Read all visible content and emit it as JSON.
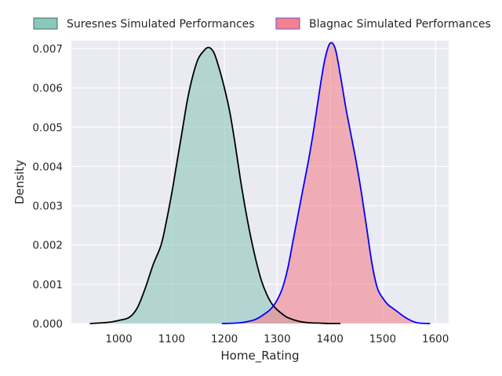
{
  "chart_data": {
    "type": "area",
    "xlabel": "Home_Rating",
    "ylabel": "Density",
    "xlim": [
      910,
      1625
    ],
    "ylim": [
      0,
      0.0072
    ],
    "xticks": [
      "1000",
      "1100",
      "1200",
      "1300",
      "1400",
      "1500",
      "1600"
    ],
    "yticks": [
      "0.000",
      "0.001",
      "0.002",
      "0.003",
      "0.004",
      "0.005",
      "0.006",
      "0.007"
    ],
    "grid": true,
    "legend_position": "top",
    "series": [
      {
        "name": "Suresnes Simulated Performances",
        "fill_color": "#8cc7bb",
        "line_color": "#000000",
        "x": [
          945,
          980,
          1000,
          1020,
          1035,
          1050,
          1065,
          1080,
          1090,
          1100,
          1110,
          1120,
          1130,
          1140,
          1150,
          1160,
          1170,
          1180,
          1190,
          1200,
          1210,
          1220,
          1230,
          1240,
          1250,
          1260,
          1270,
          1280,
          1290,
          1300,
          1310,
          1320,
          1340,
          1360,
          1380,
          1400,
          1420
        ],
        "y": [
          0.0,
          3e-05,
          8e-05,
          0.00016,
          0.0004,
          0.0009,
          0.0015,
          0.002,
          0.0026,
          0.0033,
          0.0041,
          0.0049,
          0.0057,
          0.0063,
          0.00673,
          0.00693,
          0.00703,
          0.0069,
          0.0065,
          0.006,
          0.0054,
          0.0046,
          0.0037,
          0.0029,
          0.0022,
          0.0016,
          0.0011,
          0.00075,
          0.0005,
          0.00035,
          0.00024,
          0.00015,
          6e-05,
          2e-05,
          1e-05,
          0.0,
          0.0
        ]
      },
      {
        "name": "Blagnac Simulated Performances",
        "fill_color": "#f4828c",
        "line_color": "#0000ff",
        "x": [
          1195,
          1220,
          1240,
          1260,
          1280,
          1290,
          1300,
          1310,
          1320,
          1330,
          1340,
          1350,
          1360,
          1370,
          1380,
          1390,
          1400,
          1410,
          1420,
          1430,
          1440,
          1450,
          1460,
          1470,
          1480,
          1490,
          1500,
          1510,
          1520,
          1530,
          1540,
          1550,
          1560,
          1570,
          1590
        ],
        "y": [
          0.0,
          1e-05,
          4e-05,
          0.00011,
          0.00028,
          0.0004,
          0.0006,
          0.0009,
          0.0014,
          0.0021,
          0.0028,
          0.0035,
          0.0042,
          0.005,
          0.0059,
          0.0067,
          0.00713,
          0.007,
          0.0063,
          0.0055,
          0.0048,
          0.0041,
          0.0033,
          0.0024,
          0.0015,
          0.0009,
          0.00065,
          0.00048,
          0.00038,
          0.00028,
          0.00018,
          0.0001,
          4e-05,
          1e-05,
          0.0
        ]
      }
    ]
  }
}
